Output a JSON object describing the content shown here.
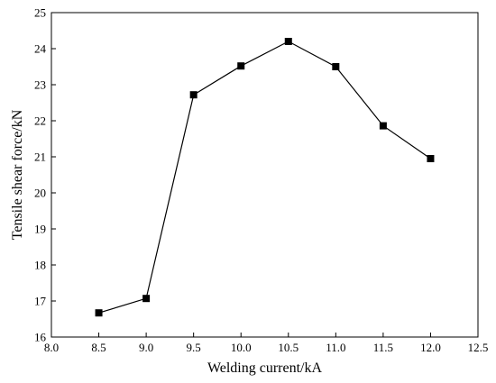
{
  "chart_data": {
    "type": "line",
    "xlabel": "Welding current/kA",
    "ylabel": "Tensile shear force/kN",
    "xlim": [
      8.0,
      12.5
    ],
    "ylim": [
      16,
      25
    ],
    "x_ticks": [
      8.0,
      8.5,
      9.0,
      9.5,
      10.0,
      10.5,
      11.0,
      11.5,
      12.0,
      12.5
    ],
    "x_tick_labels": [
      "8.0",
      "8.5",
      "9.0",
      "9.5",
      "10.0",
      "10.5",
      "11.0",
      "11.5",
      "12.0",
      "12.5"
    ],
    "y_ticks": [
      16,
      17,
      18,
      19,
      20,
      21,
      22,
      23,
      24,
      25
    ],
    "y_tick_labels": [
      "16",
      "17",
      "18",
      "19",
      "20",
      "21",
      "22",
      "23",
      "24",
      "25"
    ],
    "grid": false,
    "marker": "square",
    "series": [
      {
        "x": [
          8.5,
          9.0,
          9.5,
          10.0,
          10.5,
          11.0,
          11.5,
          12.0
        ],
        "y": [
          16.67,
          17.07,
          22.72,
          23.52,
          24.2,
          23.5,
          21.86,
          20.95
        ]
      }
    ]
  }
}
